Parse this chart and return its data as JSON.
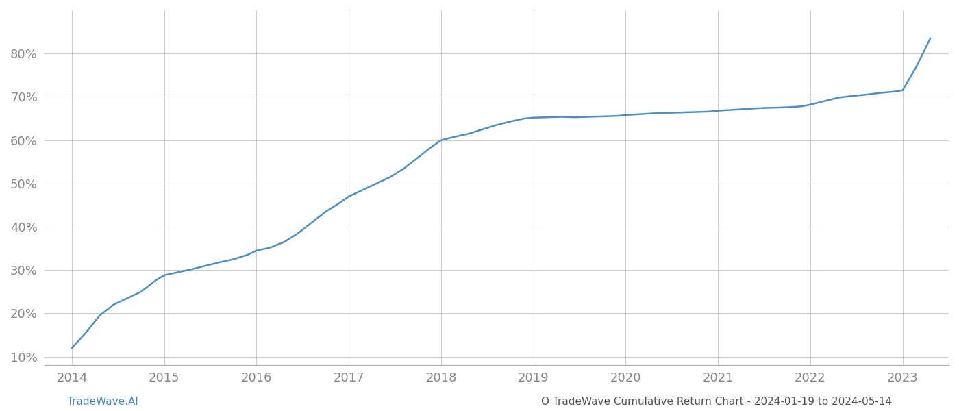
{
  "title": "",
  "footer_left": "TradeWave.AI",
  "footer_right": "O TradeWave Cumulative Return Chart - 2024-01-19 to 2024-05-14",
  "line_color": "#4a90c4",
  "line_width": 1.8,
  "background_color": "#ffffff",
  "grid_color": "#cccccc",
  "x_tick_labels": [
    "2014",
    "2015",
    "2016",
    "2017",
    "2018",
    "2019",
    "2020",
    "2021",
    "2022",
    "2023"
  ],
  "x_tick_positions": [
    2014,
    2015,
    2016,
    2017,
    2018,
    2019,
    2020,
    2021,
    2022,
    2023
  ],
  "y_tick_labels": [
    "10%",
    "20%",
    "30%",
    "40%",
    "50%",
    "60%",
    "70%",
    "80%"
  ],
  "y_tick_values": [
    10,
    20,
    30,
    40,
    50,
    60,
    70,
    80
  ],
  "ylim": [
    8,
    90
  ],
  "xlim": [
    2013.7,
    2023.5
  ],
  "x_data": [
    2014.0,
    2014.15,
    2014.3,
    2014.45,
    2014.6,
    2014.75,
    2014.9,
    2015.0,
    2015.15,
    2015.3,
    2015.45,
    2015.6,
    2015.75,
    2015.9,
    2016.0,
    2016.15,
    2016.3,
    2016.45,
    2016.6,
    2016.75,
    2016.9,
    2017.0,
    2017.15,
    2017.3,
    2017.45,
    2017.6,
    2017.75,
    2017.9,
    2018.0,
    2018.15,
    2018.3,
    2018.45,
    2018.6,
    2018.75,
    2018.9,
    2019.0,
    2019.15,
    2019.3,
    2019.45,
    2019.6,
    2019.75,
    2019.9,
    2020.0,
    2020.15,
    2020.3,
    2020.45,
    2020.6,
    2020.75,
    2020.9,
    2021.0,
    2021.15,
    2021.3,
    2021.45,
    2021.6,
    2021.75,
    2021.9,
    2022.0,
    2022.15,
    2022.3,
    2022.45,
    2022.6,
    2022.75,
    2022.9,
    2023.0,
    2023.15,
    2023.3
  ],
  "y_data": [
    12.0,
    15.5,
    19.5,
    22.0,
    23.5,
    25.0,
    27.5,
    28.8,
    29.5,
    30.2,
    31.0,
    31.8,
    32.5,
    33.5,
    34.5,
    35.2,
    36.5,
    38.5,
    41.0,
    43.5,
    45.5,
    47.0,
    48.5,
    50.0,
    51.5,
    53.5,
    56.0,
    58.5,
    60.0,
    60.8,
    61.5,
    62.5,
    63.5,
    64.3,
    65.0,
    65.2,
    65.3,
    65.4,
    65.3,
    65.4,
    65.5,
    65.6,
    65.8,
    66.0,
    66.2,
    66.3,
    66.4,
    66.5,
    66.6,
    66.8,
    67.0,
    67.2,
    67.4,
    67.5,
    67.6,
    67.8,
    68.2,
    69.0,
    69.8,
    70.2,
    70.5,
    70.9,
    71.2,
    71.5,
    77.0,
    83.5
  ],
  "tick_color": "#888888",
  "tick_fontsize": 13,
  "footer_fontsize": 11,
  "footer_left_color": "#4a90c4",
  "footer_right_color": "#555555"
}
